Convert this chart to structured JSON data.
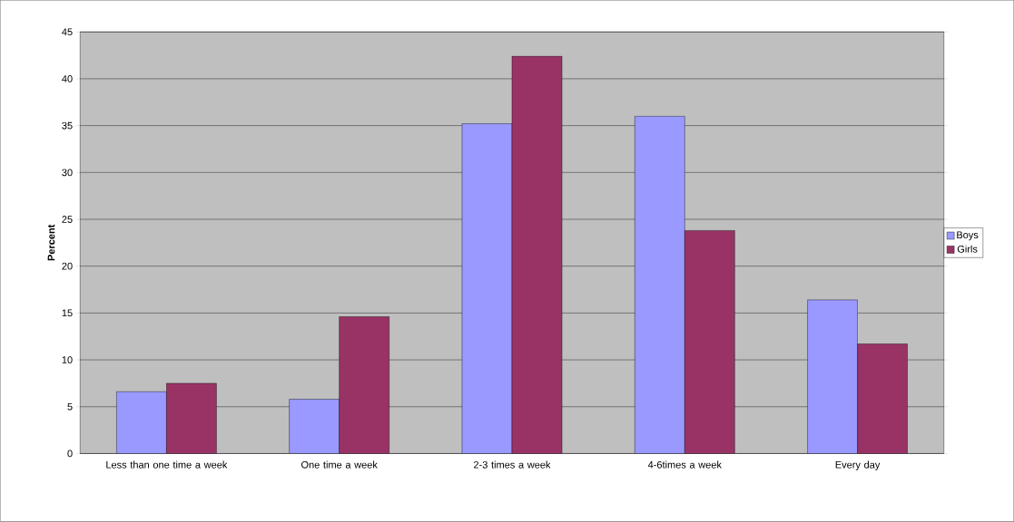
{
  "chart_data": {
    "type": "bar",
    "ylabel": "Percent",
    "categories": [
      "Less than one time a week",
      "One time a week",
      "2-3 times a week",
      "4-6times a week",
      "Every day"
    ],
    "series": [
      {
        "name": "Boys",
        "color": "#9999ff",
        "values": [
          6.6,
          5.8,
          35.2,
          36.0,
          16.4
        ]
      },
      {
        "name": "Girls",
        "color": "#993366",
        "values": [
          7.5,
          14.6,
          42.4,
          23.8,
          11.7
        ]
      }
    ],
    "ylim": [
      0,
      45
    ],
    "yticks": [
      0,
      5,
      10,
      15,
      20,
      25,
      30,
      35,
      40,
      45
    ],
    "grid": "y",
    "legend": "right"
  }
}
